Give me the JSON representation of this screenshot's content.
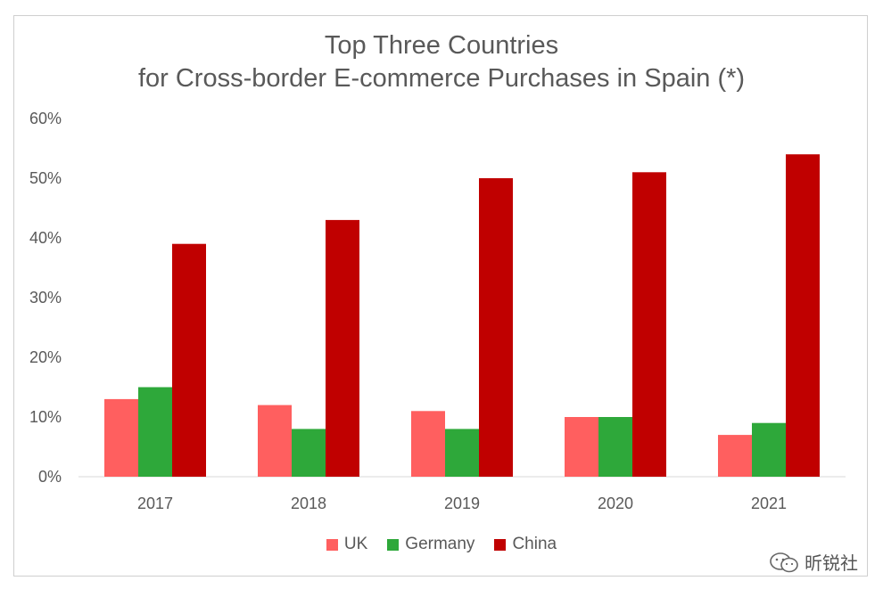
{
  "chart_data": {
    "type": "bar",
    "title_line1": "Top Three Countries",
    "title_line2": "for Cross-border E-commerce Purchases in Spain (*)",
    "categories": [
      "2017",
      "2018",
      "2019",
      "2020",
      "2021"
    ],
    "series": [
      {
        "name": "UK",
        "color": "#ff5f5f",
        "values": [
          13,
          12,
          11,
          10,
          7
        ]
      },
      {
        "name": "Germany",
        "color": "#2ea83a",
        "values": [
          15,
          8,
          8,
          10,
          9
        ]
      },
      {
        "name": "China",
        "color": "#c00000",
        "values": [
          39,
          43,
          50,
          51,
          54
        ]
      }
    ],
    "yticks": [
      "0%",
      "10%",
      "20%",
      "30%",
      "40%",
      "50%",
      "60%"
    ],
    "ylim": [
      0,
      60
    ],
    "grid": false,
    "legend_position": "bottom"
  },
  "watermark": {
    "text": "昕锐社",
    "icon": "wechat-icon"
  }
}
